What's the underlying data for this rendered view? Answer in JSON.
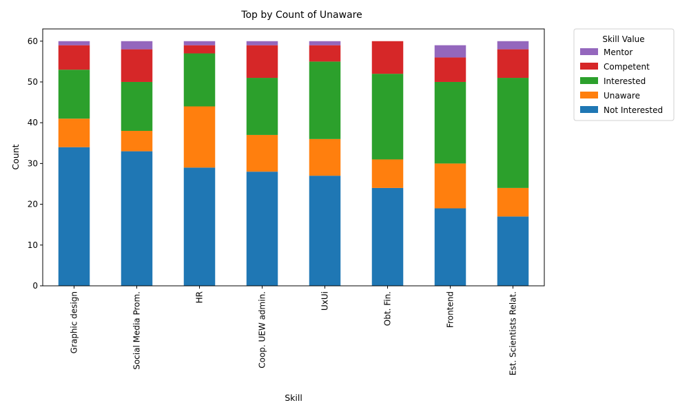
{
  "chart_data": {
    "type": "bar",
    "stacked": true,
    "title": "Top by Count of Unaware",
    "xlabel": "Skill",
    "ylabel": "Count",
    "ylim": [
      0,
      63
    ],
    "yticks": [
      0,
      10,
      20,
      30,
      40,
      50,
      60
    ],
    "grid": false,
    "legend": {
      "title": "Skill Value",
      "placement": "outside-top-right"
    },
    "categories": [
      "Graphic design",
      "Social Media Prom.",
      "HR",
      "Coop. UEW admin.",
      "UxUi",
      "Obt. Fin.",
      "Frontend",
      "Est. Scientists Relat."
    ],
    "series": [
      {
        "name": "Not Interested",
        "color": "#1f77b4",
        "values": [
          34,
          33,
          29,
          28,
          27,
          24,
          19,
          17
        ]
      },
      {
        "name": "Unaware",
        "color": "#ff7f0e",
        "values": [
          7,
          5,
          15,
          9,
          9,
          7,
          11,
          7
        ]
      },
      {
        "name": "Interested",
        "color": "#2ca02c",
        "values": [
          12,
          12,
          13,
          14,
          19,
          21,
          20,
          27
        ]
      },
      {
        "name": "Competent",
        "color": "#d62728",
        "values": [
          6,
          8,
          2,
          8,
          4,
          8,
          6,
          7
        ]
      },
      {
        "name": "Mentor",
        "color": "#9467bd",
        "values": [
          1,
          2,
          1,
          1,
          1,
          0,
          3,
          2
        ]
      }
    ]
  }
}
